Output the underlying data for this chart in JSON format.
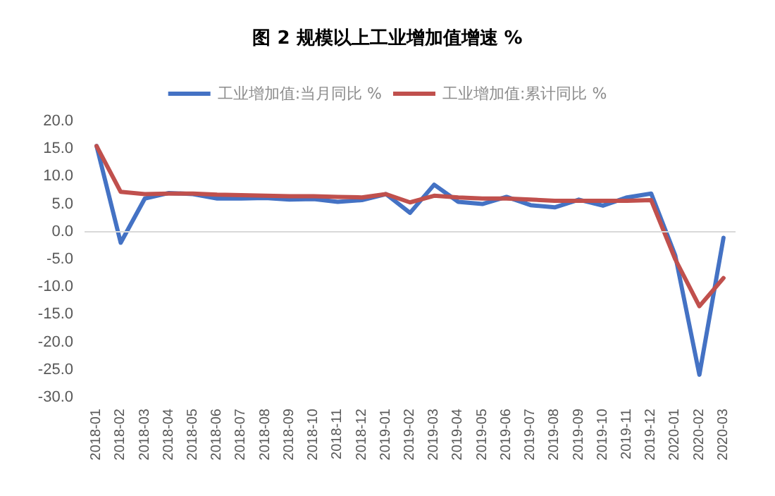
{
  "chart_data": {
    "type": "line",
    "title": "图 2 规模以上工业增加值增速 %",
    "categories": [
      "2018-01",
      "2018-02",
      "2018-03",
      "2018-04",
      "2018-05",
      "2018-06",
      "2018-07",
      "2018-08",
      "2018-09",
      "2018-10",
      "2018-11",
      "2018-12",
      "2019-01",
      "2019-02",
      "2019-03",
      "2019-04",
      "2019-05",
      "2019-06",
      "2019-07",
      "2019-08",
      "2019-09",
      "2019-10",
      "2019-11",
      "2019-12",
      "2020-01",
      "2020-02",
      "2020-03"
    ],
    "series": [
      {
        "name": "工业增加值:当月同比 %",
        "color": "#4472c4",
        "values": [
          15.5,
          -2.0,
          6.0,
          7.0,
          6.8,
          6.0,
          6.0,
          6.1,
          5.8,
          5.9,
          5.4,
          5.7,
          6.8,
          3.4,
          8.5,
          5.4,
          5.0,
          6.3,
          4.8,
          4.4,
          5.8,
          4.7,
          6.2,
          6.9,
          -4.3,
          -25.9,
          -1.1
        ]
      },
      {
        "name": "工业增加值:累计同比 %",
        "color": "#c0504d",
        "values": [
          15.5,
          7.2,
          6.8,
          6.9,
          6.9,
          6.7,
          6.6,
          6.5,
          6.4,
          6.4,
          6.3,
          6.2,
          6.8,
          5.3,
          6.5,
          6.2,
          6.0,
          6.0,
          5.8,
          5.6,
          5.6,
          5.6,
          5.6,
          5.7,
          -5.0,
          -13.5,
          -8.4
        ]
      }
    ],
    "ylim": [
      -30,
      20
    ],
    "yticks": [
      {
        "value": -30,
        "label": "-30.0"
      },
      {
        "value": -25,
        "label": "-25.0"
      },
      {
        "value": -20,
        "label": "-20.0"
      },
      {
        "value": -15,
        "label": "-15.0"
      },
      {
        "value": -10,
        "label": "-10.0"
      },
      {
        "value": -5,
        "label": "-5.0"
      },
      {
        "value": 0,
        "label": "0.0"
      },
      {
        "value": 5,
        "label": "5.0"
      },
      {
        "value": 10,
        "label": "10.0"
      },
      {
        "value": 15,
        "label": "15.0"
      },
      {
        "value": 20,
        "label": "20.0"
      }
    ],
    "ref_lines": [
      {
        "axis": "y",
        "value": 0,
        "color": "#d9d9d9"
      }
    ],
    "grid": false,
    "legend": "top",
    "marker": "none",
    "line_style": "solid"
  }
}
